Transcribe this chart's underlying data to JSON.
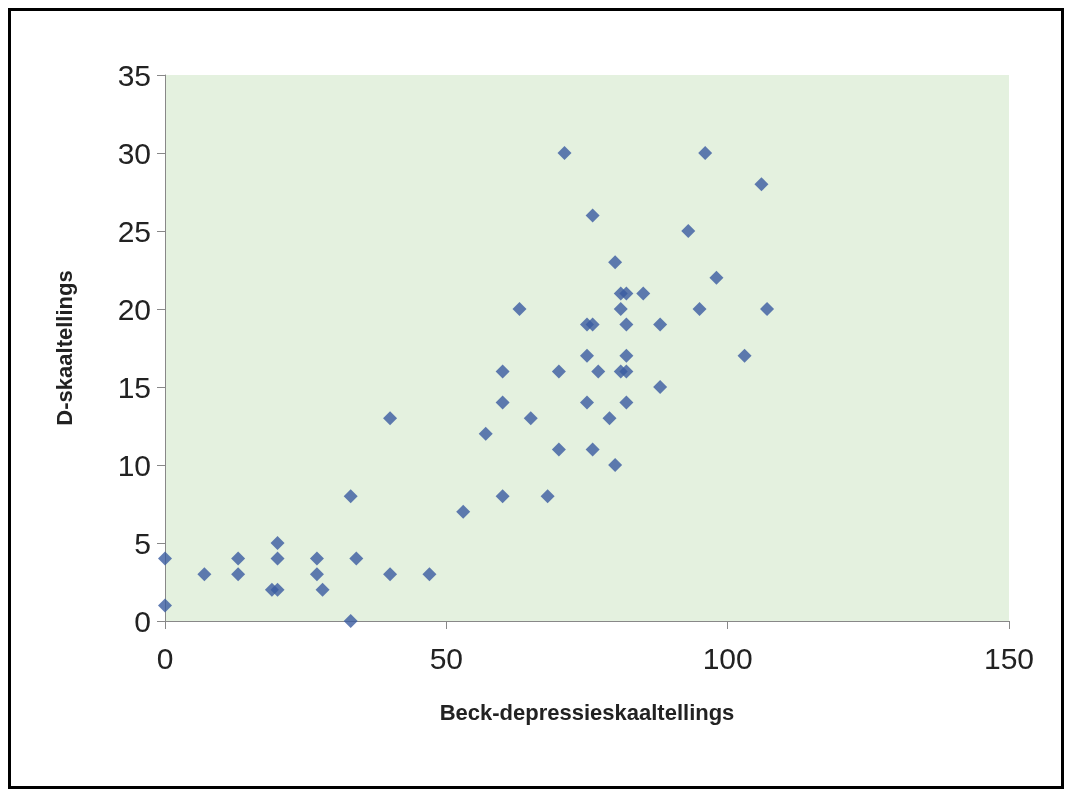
{
  "chart_data": {
    "type": "scatter",
    "xlabel": "Beck-depressieskaaltellings",
    "ylabel": "D-skaaltellings",
    "x": [
      0,
      0,
      7,
      13,
      13,
      19,
      20,
      20,
      20,
      27,
      27,
      28,
      33,
      33,
      34,
      40,
      40,
      47,
      53,
      57,
      60,
      60,
      60,
      63,
      65,
      68,
      70,
      70,
      71,
      75,
      75,
      75,
      76,
      76,
      76,
      77,
      79,
      80,
      80,
      81,
      81,
      81,
      82,
      82,
      82,
      82,
      82,
      85,
      88,
      88,
      93,
      95,
      96,
      98,
      103,
      106,
      107
    ],
    "series": [
      {
        "color": "#3a5ba0",
        "values": [
          4,
          1,
          3,
          4,
          3,
          2,
          2,
          5,
          4,
          4,
          3,
          2,
          0,
          8,
          4,
          3,
          13,
          3,
          7,
          12,
          8,
          14,
          16,
          20,
          13,
          8,
          11,
          16,
          30,
          14,
          17,
          19,
          19,
          11,
          26,
          16,
          13,
          23,
          10,
          20,
          21,
          16,
          16,
          17,
          14,
          19,
          21,
          21,
          19,
          15,
          25,
          20,
          30,
          22,
          17,
          28,
          20
        ]
      }
    ],
    "xlim": [
      0,
      150
    ],
    "xticks": [
      0,
      50,
      100,
      150
    ],
    "ylim": [
      0,
      35
    ],
    "yticks": [
      0,
      5,
      10,
      15,
      20,
      25,
      30,
      35
    ],
    "grid": false,
    "marker": "diamond"
  }
}
